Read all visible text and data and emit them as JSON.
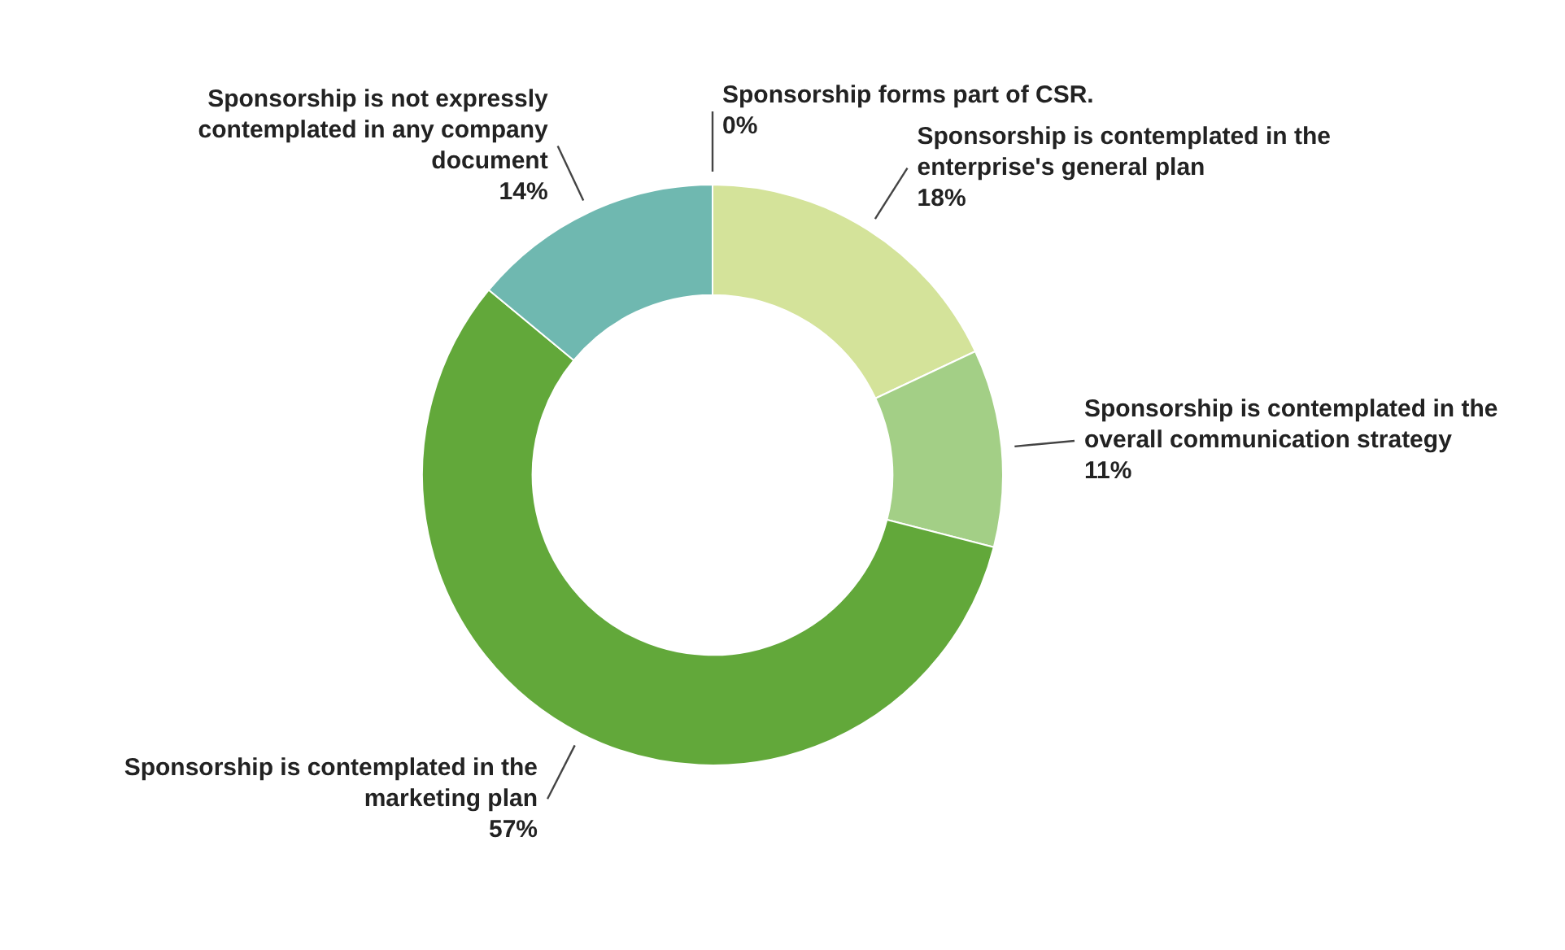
{
  "chart_data": {
    "type": "donut",
    "categories": [
      "Sponsorship forms part of CSR.",
      "Sponsorship is contemplated in the enterprise's general plan",
      "Sponsorship is contemplated in the overall communication strategy",
      "Sponsorship is contemplated in the marketing plan",
      "Sponsorship is not expressly contemplated in any company document"
    ],
    "values": [
      0,
      18,
      11,
      57,
      14
    ],
    "value_labels": [
      "0%",
      "18%",
      "11%",
      "57%",
      "14%"
    ],
    "colors": [
      "#c8dc8c",
      "#d4e39a",
      "#a3cf86",
      "#62a83a",
      "#6fb8b0"
    ],
    "legend": false
  }
}
